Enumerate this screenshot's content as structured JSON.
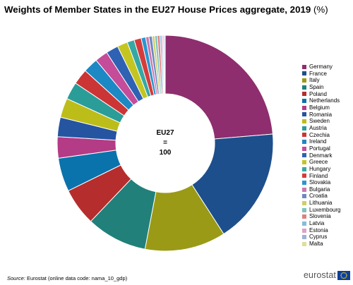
{
  "title": "Weights of Member States in the EU27 House Prices aggregate, 2019",
  "unit": "(%)",
  "center_label": [
    "EU27",
    "=",
    "100"
  ],
  "source_label": "Source:",
  "source_text": "Eurostat (online data code: nama_10_gdp)",
  "logo_text": "eurostat",
  "chart_data": {
    "type": "pie",
    "title": "Weights of Member States in the EU27 House Prices aggregate, 2019",
    "unit": "%",
    "donut": true,
    "legend_position": "right",
    "start_angle": "top, clockwise",
    "categories": [
      "Germany",
      "France",
      "Italy",
      "Spain",
      "Poland",
      "Netherlands",
      "Belgium",
      "Romania",
      "Sweden",
      "Austria",
      "Czechia",
      "Ireland",
      "Portugal",
      "Denmark",
      "Greece",
      "Hungary",
      "Finland",
      "Slovakia",
      "Bulgaria",
      "Croatia",
      "Lithuania",
      "Luxembourg",
      "Slovenia",
      "Latvia",
      "Estonia",
      "Cyprus",
      "Malta"
    ],
    "values": [
      24.4,
      17.8,
      12.5,
      9.4,
      5.8,
      5.2,
      3.3,
      3.0,
      3.0,
      2.7,
      2.4,
      2.3,
      2.0,
      1.9,
      1.6,
      1.1,
      1.1,
      0.7,
      0.5,
      0.5,
      0.4,
      0.4,
      0.4,
      0.3,
      0.2,
      0.2,
      0.1
    ],
    "colors": [
      "#8e2e6e",
      "#1d4f8c",
      "#9a9a16",
      "#21807a",
      "#b62d2d",
      "#0a73ac",
      "#b43b86",
      "#2554a1",
      "#bdbd1a",
      "#2a9d99",
      "#cc3535",
      "#1c88c4",
      "#c44c99",
      "#2f62b3",
      "#c5c522",
      "#36a8a4",
      "#d43c3c",
      "#2a96d2",
      "#cc78ae",
      "#6c89c4",
      "#cfcf66",
      "#7fc3bf",
      "#e08080",
      "#82bde0",
      "#dca3c6",
      "#9fb1d8",
      "#dede9a"
    ]
  }
}
